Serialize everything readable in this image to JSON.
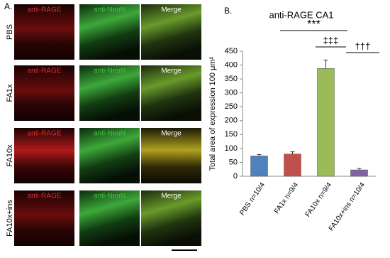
{
  "panel_a": {
    "label": "A.",
    "rows": [
      {
        "label": "PBS",
        "channels": [
          "anti-RAGE",
          "anti-NeuN",
          "Merge"
        ]
      },
      {
        "label": "FA1x",
        "channels": [
          "anti-RAGE",
          "anti-NeuN",
          "Merge"
        ]
      },
      {
        "label": "FA10x",
        "channels": [
          "anti-RAGE",
          "anti-NeuN",
          "Merge"
        ]
      },
      {
        "label": "FA10x+ins",
        "channels": [
          "anti-RAGE",
          "anti-NeuN",
          "Merge"
        ]
      }
    ]
  },
  "chart_data": {
    "type": "bar",
    "panel_label": "B.",
    "title": "anti-RAGE CA1",
    "y_label": "Total area of expression 100 μm²",
    "categories": [
      "PBS n=10/4",
      "FA1x n=9/4",
      "FA10x n=9/4",
      "FA10x+ins n=10/4"
    ],
    "values": [
      73,
      80,
      388,
      23
    ],
    "errors": [
      5,
      8,
      30,
      5
    ],
    "colors": [
      "#4f81bd",
      "#c0504d",
      "#9bbb59",
      "#8064a2"
    ],
    "ylim": [
      0,
      450
    ],
    "yticks": [
      0,
      50,
      100,
      150,
      200,
      250,
      300,
      350,
      400,
      450
    ],
    "annotations": [
      "***",
      "‡‡‡",
      "†††"
    ]
  }
}
